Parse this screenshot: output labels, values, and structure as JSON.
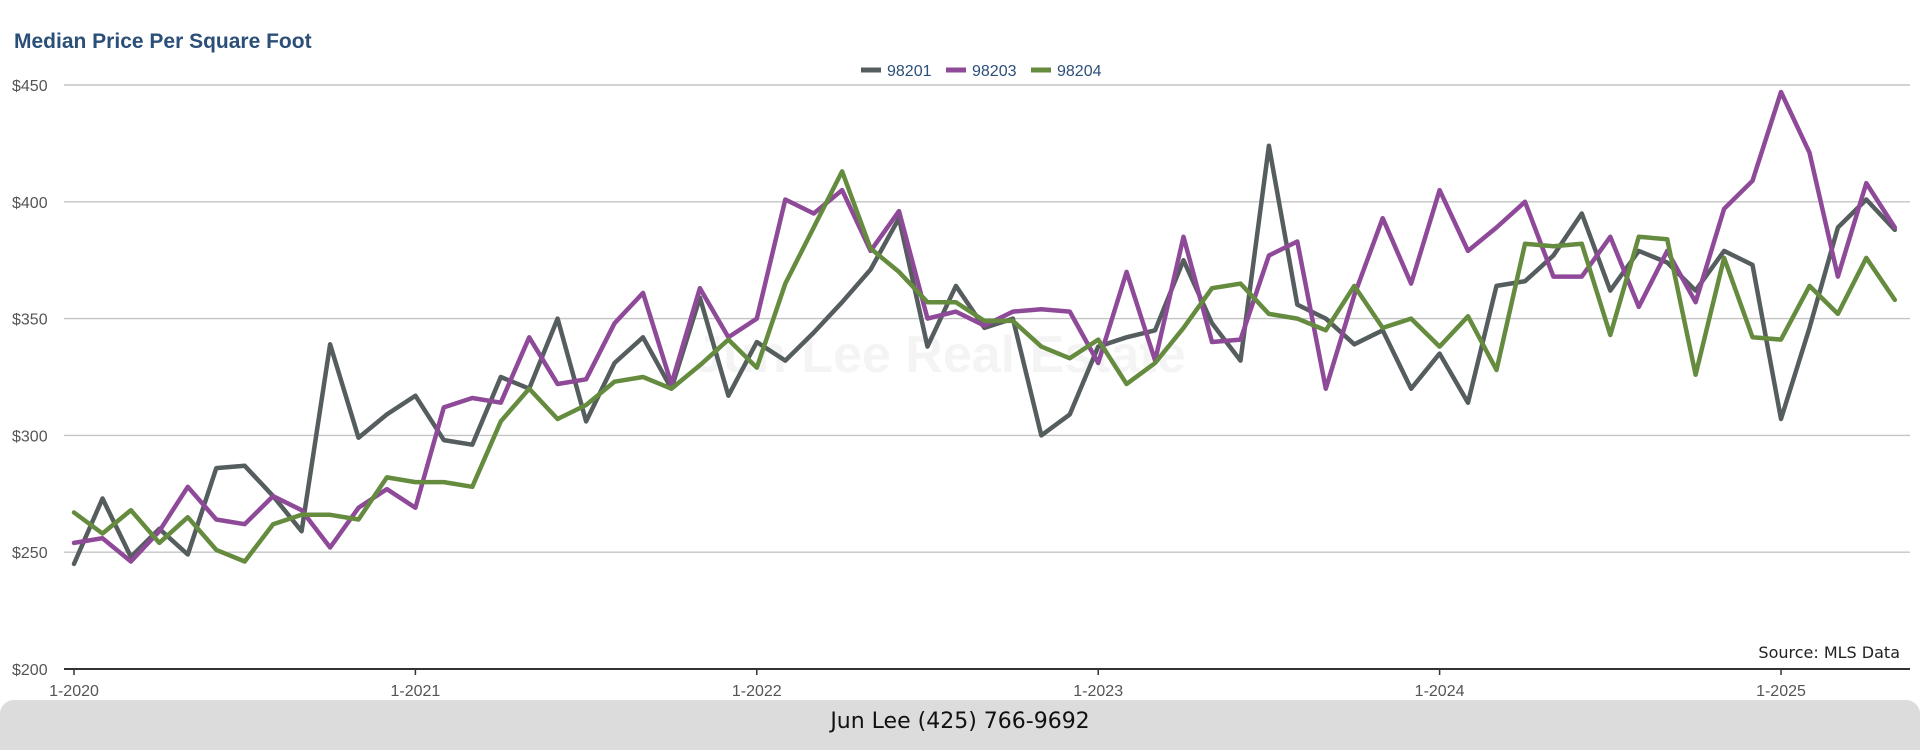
{
  "footer": {
    "contact": "Jun Lee (425) 766-9692"
  },
  "watermark": "Jun Lee Real Estate",
  "chart_data": {
    "type": "line",
    "title": "Median Price Per Square Foot",
    "source": "Source: MLS Data",
    "ylim": [
      200,
      450
    ],
    "y_ticks": [
      "$200",
      "$250",
      "$300",
      "$350",
      "$400",
      "$450"
    ],
    "y_tick_values": [
      200,
      250,
      300,
      350,
      400,
      450
    ],
    "x_ticks": [
      "1-2020",
      "1-2021",
      "1-2022",
      "1-2023",
      "1-2024",
      "1-2025"
    ],
    "x_start": "1-2020",
    "x_end": "5-2025",
    "grid": true,
    "legend_position": "top-center",
    "series": [
      {
        "name": "98201",
        "color": "#555d5e",
        "values": [
          245,
          273,
          248,
          260,
          249,
          286,
          287,
          274,
          259,
          339,
          299,
          309,
          317,
          298,
          296,
          325,
          320,
          350,
          306,
          331,
          342,
          320,
          359,
          317,
          340,
          332,
          344,
          357,
          371,
          393,
          338,
          364,
          346,
          350,
          300,
          309,
          338,
          342,
          345,
          375,
          348,
          332,
          424,
          356,
          350,
          339,
          345,
          320,
          335,
          314,
          364,
          366,
          377,
          395,
          362,
          379,
          374,
          362,
          379,
          373,
          307,
          346,
          389,
          401,
          388
        ]
      },
      {
        "name": "98203",
        "color": "#8e4a98",
        "values": [
          254,
          256,
          246,
          259,
          278,
          264,
          262,
          274,
          268,
          252,
          269,
          277,
          269,
          312,
          316,
          314,
          342,
          322,
          324,
          348,
          361,
          322,
          363,
          342,
          350,
          401,
          395,
          405,
          379,
          396,
          350,
          353,
          347,
          353,
          354,
          353,
          331,
          370,
          332,
          385,
          340,
          341,
          377,
          383,
          320,
          360,
          393,
          365,
          405,
          379,
          389,
          400,
          368,
          368,
          385,
          355,
          379,
          357,
          397,
          409,
          447,
          421,
          368,
          408,
          389
        ]
      },
      {
        "name": "98204",
        "color": "#658b3f",
        "values": [
          267,
          258,
          268,
          254,
          265,
          251,
          246,
          262,
          266,
          266,
          264,
          282,
          280,
          280,
          278,
          306,
          320,
          307,
          313,
          323,
          325,
          320,
          330,
          341,
          329,
          365,
          389,
          413,
          380,
          370,
          357,
          357,
          349,
          349,
          338,
          333,
          341,
          322,
          331,
          346,
          363,
          365,
          352,
          350,
          345,
          364,
          346,
          350,
          338,
          351,
          328,
          382,
          381,
          382,
          343,
          385,
          384,
          326,
          376,
          342,
          341,
          364,
          352,
          376,
          358
        ]
      }
    ]
  }
}
